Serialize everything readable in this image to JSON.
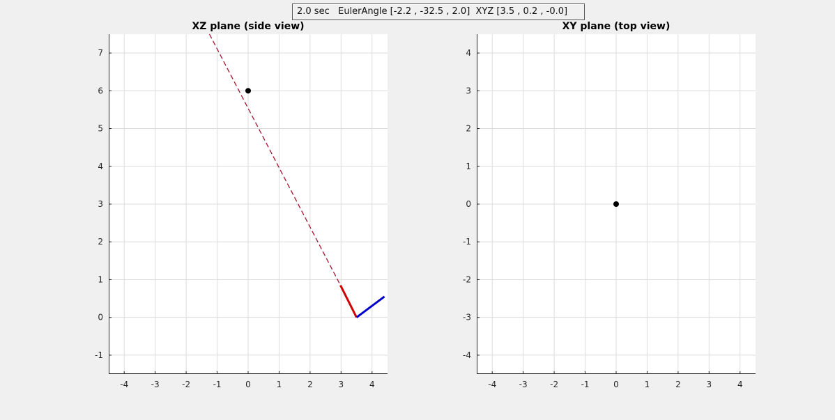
{
  "status": {
    "text": "2.0 sec   EulerAngle [-2.2 , -32.5 , 2.0]  XYZ [3.5 , 0.2 , -0.0]"
  },
  "colors": {
    "background": "#f0f0f0",
    "axes_bg": "#ffffff",
    "grid": "#dcdcdc",
    "axis_line": "#262626",
    "dashed": "#a2142f",
    "red_segment": "#d00000",
    "blue_segment": "#0000cc",
    "marker": "#000000"
  },
  "chart_data": [
    {
      "type": "line",
      "title": "XZ plane (side view)",
      "xlabel": "",
      "ylabel": "",
      "xlim": [
        -4.5,
        4.5
      ],
      "ylim": [
        -1.5,
        7.5
      ],
      "xticks": [
        -4,
        -3,
        -2,
        -1,
        0,
        1,
        2,
        3,
        4
      ],
      "yticks": [
        -1,
        0,
        1,
        2,
        3,
        4,
        5,
        6,
        7
      ],
      "grid": true,
      "series": [
        {
          "style": "dashed",
          "color": "#a2142f",
          "x": [
            -1.25,
            2.98
          ],
          "y": [
            7.5,
            0.85
          ]
        },
        {
          "style": "solid",
          "color": "#d00000",
          "x": [
            2.98,
            3.5
          ],
          "y": [
            0.85,
            0.0
          ]
        },
        {
          "style": "solid",
          "color": "#0000cc",
          "x": [
            3.5,
            4.4
          ],
          "y": [
            0.0,
            0.55
          ]
        },
        {
          "style": "marker",
          "color": "#000000",
          "x": [
            0
          ],
          "y": [
            6
          ]
        }
      ]
    },
    {
      "type": "scatter",
      "title": "XY plane (top view)",
      "xlabel": "",
      "ylabel": "",
      "xlim": [
        -4.5,
        4.5
      ],
      "ylim": [
        -4.5,
        4.5
      ],
      "xticks": [
        -4,
        -3,
        -2,
        -1,
        0,
        1,
        2,
        3,
        4
      ],
      "yticks": [
        -4,
        -3,
        -2,
        -1,
        0,
        1,
        2,
        3,
        4
      ],
      "grid": true,
      "series": [
        {
          "style": "marker",
          "color": "#000000",
          "x": [
            0
          ],
          "y": [
            0
          ]
        }
      ]
    }
  ]
}
